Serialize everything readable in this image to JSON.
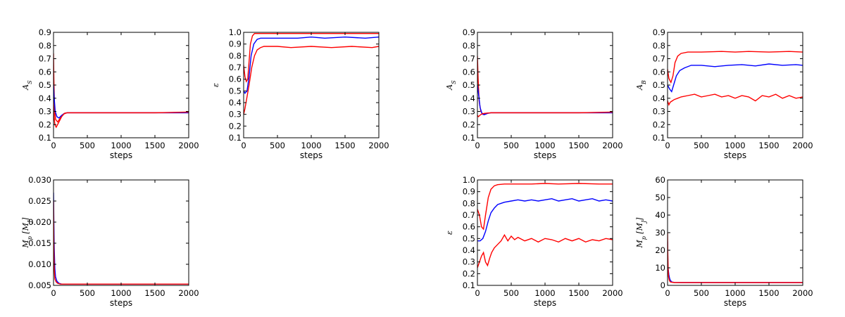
{
  "chart_data": [
    {
      "type": "line",
      "ylabel": "A_S",
      "ylabel_main": "A",
      "ylabel_sub": "S",
      "xlabel": "steps",
      "xlim": [
        0,
        2000
      ],
      "ylim": [
        0.1,
        0.9
      ],
      "xticks": [
        "0",
        "500",
        "1000",
        "1500",
        "2000"
      ],
      "yticks": [
        "0.1",
        "0.2",
        "0.3",
        "0.4",
        "0.5",
        "0.6",
        "0.7",
        "0.8",
        "0.9"
      ],
      "series": [
        {
          "color": "#ff0000",
          "x": [
            0,
            5,
            15,
            30,
            60,
            100,
            150,
            200,
            400,
            800,
            1200,
            1600,
            2000
          ],
          "y": [
            0.74,
            0.55,
            0.33,
            0.24,
            0.22,
            0.25,
            0.28,
            0.29,
            0.29,
            0.29,
            0.29,
            0.29,
            0.29
          ]
        },
        {
          "color": "#0000ff",
          "x": [
            0,
            10,
            25,
            50,
            80,
            120,
            160,
            200,
            500,
            1000,
            1500,
            2000
          ],
          "y": [
            0.5,
            0.4,
            0.3,
            0.26,
            0.25,
            0.27,
            0.285,
            0.29,
            0.29,
            0.29,
            0.29,
            0.29
          ]
        },
        {
          "color": "#ff0000",
          "x": [
            0,
            10,
            20,
            40,
            80,
            120,
            160,
            200,
            500,
            1000,
            1500,
            2000
          ],
          "y": [
            0.35,
            0.25,
            0.2,
            0.18,
            0.22,
            0.26,
            0.285,
            0.29,
            0.29,
            0.29,
            0.29,
            0.295
          ]
        }
      ]
    },
    {
      "type": "line",
      "ylabel": "ε",
      "ylabel_main": "ε",
      "ylabel_sub": "",
      "xlabel": "steps",
      "xlim": [
        0,
        2000
      ],
      "ylim": [
        0.1,
        1.0
      ],
      "xticks": [
        "0",
        "500",
        "1000",
        "1500",
        "2000"
      ],
      "yticks": [
        "0.1",
        "0.2",
        "0.3",
        "0.4",
        "0.5",
        "0.6",
        "0.7",
        "0.8",
        "0.9",
        "1.0"
      ],
      "series": [
        {
          "color": "#ff0000",
          "x": [
            0,
            20,
            40,
            60,
            80,
            100,
            130,
            160,
            200,
            300,
            500,
            1000,
            1500,
            2000
          ],
          "y": [
            0.72,
            0.62,
            0.58,
            0.6,
            0.75,
            0.9,
            0.97,
            0.99,
            0.99,
            0.99,
            0.99,
            0.99,
            0.99,
            0.99
          ]
        },
        {
          "color": "#0000ff",
          "x": [
            0,
            20,
            50,
            80,
            110,
            150,
            200,
            250,
            300,
            500,
            800,
            1000,
            1200,
            1500,
            1800,
            2000
          ],
          "y": [
            0.5,
            0.48,
            0.5,
            0.62,
            0.8,
            0.9,
            0.94,
            0.95,
            0.95,
            0.95,
            0.95,
            0.96,
            0.95,
            0.96,
            0.95,
            0.96
          ]
        },
        {
          "color": "#ff0000",
          "x": [
            0,
            20,
            50,
            80,
            120,
            160,
            200,
            250,
            300,
            500,
            700,
            1000,
            1300,
            1600,
            1900,
            2000
          ],
          "y": [
            0.3,
            0.35,
            0.45,
            0.55,
            0.7,
            0.8,
            0.85,
            0.87,
            0.88,
            0.88,
            0.87,
            0.88,
            0.87,
            0.88,
            0.87,
            0.88
          ]
        }
      ]
    },
    {
      "type": "line",
      "ylabel": "M_p [M_J]",
      "ylabel_main": "M",
      "ylabel_sub": "p",
      "ylabel_unit": "[M",
      "ylabel_unit_sub": "J",
      "ylabel_unit_end": "]",
      "xlabel": "steps",
      "xlim": [
        0,
        2000
      ],
      "ylim": [
        0.005,
        0.03
      ],
      "xticks": [
        "0",
        "500",
        "1000",
        "1500",
        "2000"
      ],
      "yticks": [
        "0.005",
        "0.010",
        "0.015",
        "0.020",
        "0.025",
        "0.030"
      ],
      "series": [
        {
          "color": "#0000ff",
          "x": [
            0,
            5,
            10,
            20,
            30,
            50,
            80,
            120,
            200,
            2000
          ],
          "y": [
            0.027,
            0.02,
            0.014,
            0.009,
            0.007,
            0.006,
            0.0055,
            0.0053,
            0.0053,
            0.0053
          ]
        },
        {
          "color": "#ff0000",
          "x": [
            0,
            5,
            10,
            20,
            40,
            60,
            100,
            200,
            2000
          ],
          "y": [
            0.025,
            0.014,
            0.009,
            0.0065,
            0.0058,
            0.0055,
            0.0053,
            0.0053,
            0.0053
          ]
        }
      ]
    },
    {
      "type": "line",
      "ylabel": "A_S",
      "ylabel_main": "A",
      "ylabel_sub": "S",
      "xlabel": "steps",
      "xlim": [
        0,
        2000
      ],
      "ylim": [
        0.1,
        0.9
      ],
      "xticks": [
        "0",
        "500",
        "1000",
        "1500",
        "2000"
      ],
      "yticks": [
        "0.1",
        "0.2",
        "0.3",
        "0.4",
        "0.5",
        "0.6",
        "0.7",
        "0.8",
        "0.9"
      ],
      "series": [
        {
          "color": "#ff0000",
          "x": [
            0,
            10,
            25,
            50,
            80,
            120,
            200,
            500,
            1000,
            1500,
            2000
          ],
          "y": [
            0.72,
            0.55,
            0.38,
            0.3,
            0.28,
            0.285,
            0.29,
            0.29,
            0.29,
            0.29,
            0.29
          ]
        },
        {
          "color": "#0000ff",
          "x": [
            0,
            20,
            40,
            70,
            100,
            150,
            200,
            500,
            1000,
            2000
          ],
          "y": [
            0.5,
            0.42,
            0.33,
            0.28,
            0.275,
            0.285,
            0.29,
            0.29,
            0.29,
            0.29
          ]
        },
        {
          "color": "#ff0000",
          "x": [
            0,
            15,
            35,
            60,
            100,
            200,
            500,
            1000,
            1500,
            2000
          ],
          "y": [
            0.27,
            0.26,
            0.27,
            0.28,
            0.285,
            0.29,
            0.29,
            0.29,
            0.29,
            0.295
          ]
        }
      ]
    },
    {
      "type": "line",
      "ylabel": "A_B",
      "ylabel_main": "A",
      "ylabel_sub": "B",
      "xlabel": "steps",
      "xlim": [
        0,
        2000
      ],
      "ylim": [
        0.1,
        0.9
      ],
      "xticks": [
        "0",
        "500",
        "1000",
        "1500",
        "2000"
      ],
      "yticks": [
        "0.1",
        "0.2",
        "0.3",
        "0.4",
        "0.5",
        "0.6",
        "0.7",
        "0.8",
        "0.9"
      ],
      "series": [
        {
          "color": "#ff0000",
          "x": [
            0,
            20,
            50,
            80,
            110,
            150,
            200,
            300,
            500,
            800,
            1000,
            1200,
            1500,
            1800,
            2000
          ],
          "y": [
            0.62,
            0.55,
            0.52,
            0.57,
            0.67,
            0.72,
            0.74,
            0.75,
            0.75,
            0.755,
            0.75,
            0.755,
            0.75,
            0.755,
            0.75
          ]
        },
        {
          "color": "#0000ff",
          "x": [
            0,
            30,
            60,
            90,
            130,
            180,
            250,
            350,
            500,
            700,
            900,
            1100,
            1300,
            1500,
            1700,
            1900,
            2000
          ],
          "y": [
            0.5,
            0.47,
            0.45,
            0.5,
            0.57,
            0.61,
            0.63,
            0.65,
            0.65,
            0.64,
            0.65,
            0.655,
            0.645,
            0.66,
            0.65,
            0.655,
            0.65
          ]
        },
        {
          "color": "#ff0000",
          "x": [
            0,
            20,
            40,
            70,
            100,
            150,
            200,
            300,
            400,
            500,
            600,
            700,
            800,
            900,
            1000,
            1100,
            1200,
            1300,
            1400,
            1500,
            1600,
            1700,
            1800,
            1900,
            2000
          ],
          "y": [
            0.38,
            0.35,
            0.37,
            0.38,
            0.39,
            0.4,
            0.41,
            0.42,
            0.43,
            0.41,
            0.42,
            0.43,
            0.41,
            0.42,
            0.4,
            0.42,
            0.41,
            0.38,
            0.42,
            0.41,
            0.43,
            0.4,
            0.42,
            0.4,
            0.41
          ]
        }
      ]
    },
    {
      "type": "line",
      "ylabel": "ε",
      "ylabel_main": "ε",
      "ylabel_sub": "",
      "xlabel": "steps",
      "xlim": [
        0,
        2000
      ],
      "ylim": [
        0.1,
        1.0
      ],
      "xticks": [
        "0",
        "500",
        "1000",
        "1500",
        "2000"
      ],
      "yticks": [
        "0.1",
        "0.2",
        "0.3",
        "0.4",
        "0.5",
        "0.6",
        "0.7",
        "0.8",
        "0.9",
        "1.0"
      ],
      "series": [
        {
          "color": "#ff0000",
          "x": [
            0,
            30,
            60,
            90,
            120,
            160,
            200,
            250,
            300,
            400,
            600,
            800,
            1000,
            1200,
            1500,
            1800,
            2000
          ],
          "y": [
            0.75,
            0.7,
            0.6,
            0.58,
            0.7,
            0.85,
            0.92,
            0.95,
            0.96,
            0.965,
            0.965,
            0.965,
            0.97,
            0.965,
            0.97,
            0.965,
            0.965
          ]
        },
        {
          "color": "#0000ff",
          "x": [
            0,
            40,
            80,
            120,
            160,
            200,
            250,
            300,
            350,
            400,
            500,
            600,
            700,
            800,
            900,
            1000,
            1100,
            1200,
            1300,
            1400,
            1500,
            1600,
            1700,
            1800,
            1900,
            2000
          ],
          "y": [
            0.48,
            0.48,
            0.5,
            0.56,
            0.65,
            0.72,
            0.76,
            0.79,
            0.8,
            0.81,
            0.82,
            0.83,
            0.82,
            0.83,
            0.82,
            0.83,
            0.84,
            0.82,
            0.83,
            0.84,
            0.82,
            0.83,
            0.84,
            0.82,
            0.83,
            0.82
          ]
        },
        {
          "color": "#ff0000",
          "x": [
            0,
            30,
            60,
            90,
            120,
            150,
            180,
            210,
            250,
            300,
            350,
            400,
            450,
            500,
            550,
            600,
            700,
            800,
            900,
            1000,
            1100,
            1200,
            1300,
            1400,
            1500,
            1600,
            1700,
            1800,
            1900,
            2000
          ],
          "y": [
            0.25,
            0.3,
            0.35,
            0.38,
            0.3,
            0.27,
            0.33,
            0.38,
            0.42,
            0.45,
            0.48,
            0.53,
            0.48,
            0.52,
            0.49,
            0.51,
            0.48,
            0.5,
            0.47,
            0.5,
            0.49,
            0.47,
            0.5,
            0.48,
            0.5,
            0.47,
            0.49,
            0.48,
            0.5,
            0.49
          ]
        }
      ]
    },
    {
      "type": "line",
      "ylabel": "M_p [M_J]",
      "ylabel_main": "M",
      "ylabel_sub": "p",
      "ylabel_unit": "[M",
      "ylabel_unit_sub": "J",
      "ylabel_unit_end": "]",
      "xlabel": "steps",
      "xlim": [
        0,
        2000
      ],
      "ylim": [
        0,
        60
      ],
      "xticks": [
        "0",
        "500",
        "1000",
        "1500",
        "2000"
      ],
      "yticks": [
        "0",
        "10",
        "20",
        "30",
        "40",
        "50",
        "60"
      ],
      "series": [
        {
          "color": "#0000ff",
          "x": [
            0,
            5,
            10,
            20,
            30,
            40,
            60,
            100,
            200,
            2000
          ],
          "y": [
            25,
            12,
            9,
            6,
            4,
            3,
            2,
            1.7,
            1.6,
            1.6
          ]
        },
        {
          "color": "#ff0000",
          "x": [
            0,
            3,
            8,
            15,
            25,
            40,
            60,
            100,
            200,
            2000
          ],
          "y": [
            30,
            20,
            10,
            5,
            3,
            2,
            1.8,
            1.6,
            1.6,
            1.6
          ]
        }
      ]
    }
  ]
}
